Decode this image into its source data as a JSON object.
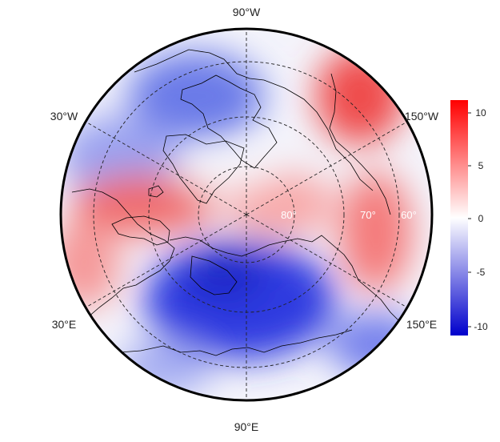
{
  "map": {
    "projection": "polar stereographic (north pole)",
    "longitude_labels": {
      "top": "90°W",
      "upper_left": "30°W",
      "upper_right": "150°W",
      "lower_left": "30°E",
      "lower_right": "150°E",
      "bottom": "90°E"
    },
    "latitude_labels": [
      "80°",
      "70°",
      "60°"
    ],
    "field_description": "anomaly field on diverging blue-white-red scale",
    "colors": {
      "negative": "#0000cc",
      "zero": "#ffffff",
      "positive": "#ee0000",
      "coastline": "#000000",
      "graticule": "#222222"
    }
  },
  "colorbar": {
    "ticks": [
      "10",
      "5",
      "0",
      "-5",
      "-10"
    ],
    "range": [
      -11,
      11
    ],
    "colors": {
      "top": "#ff0000",
      "middle": "#ffffff",
      "bottom": "#0000cc"
    }
  }
}
